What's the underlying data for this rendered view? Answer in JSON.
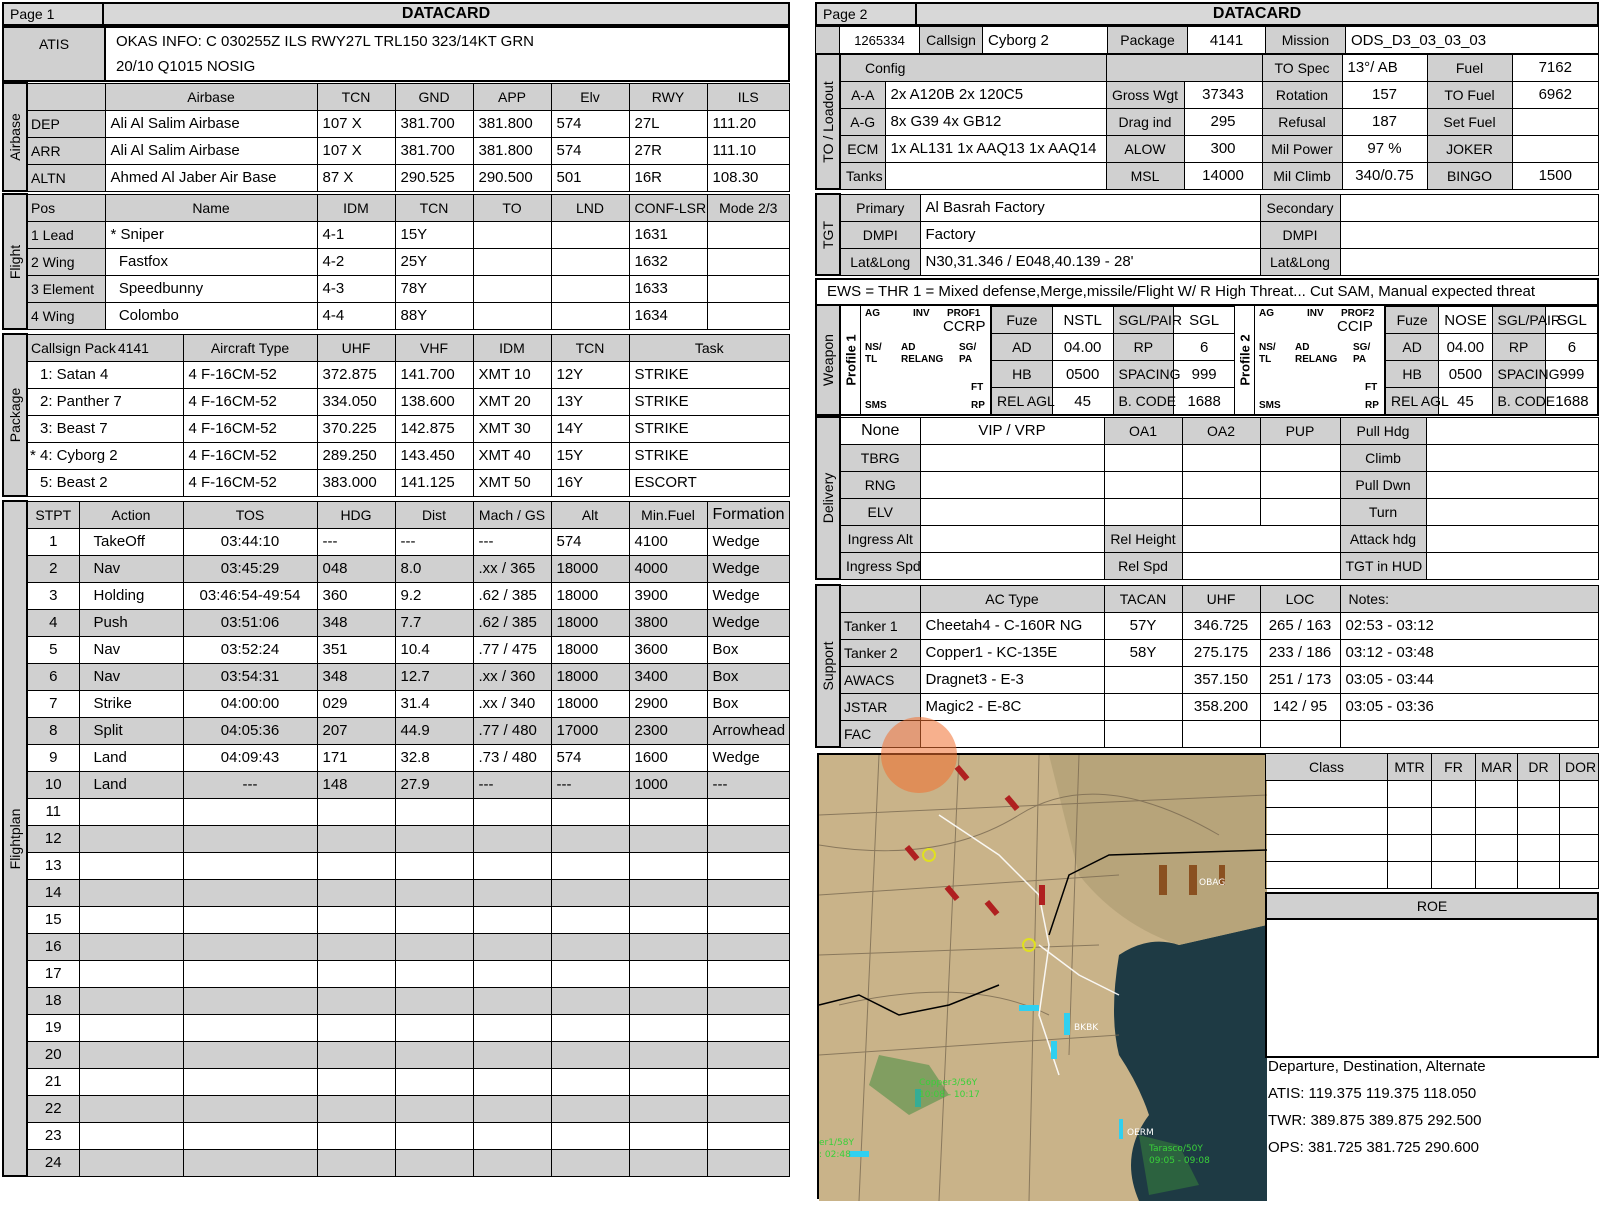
{
  "page1": {
    "page": "Page 1",
    "title": "DATACARD",
    "atis_label": "ATIS",
    "atis_line1": "OKAS INFO: C 030255Z ILS RWY27L TRL150 323/14KT GRN",
    "atis_line2": "20/10 Q1015  NOSIG",
    "airbase": {
      "section": "Airbase",
      "headers": [
        "",
        "Airbase",
        "TCN",
        "GND",
        "APP",
        "Elv",
        "RWY",
        "ILS"
      ],
      "rows": [
        [
          "DEP",
          "Ali Al Salim Airbase",
          "107 X",
          "381.700",
          "381.800",
          "574",
          "27L",
          "111.20"
        ],
        [
          "ARR",
          "Ali Al Salim Airbase",
          "107 X",
          "381.700",
          "381.800",
          "574",
          "27R",
          "111.10"
        ],
        [
          "ALTN",
          "Ahmed Al Jaber Air Base",
          "87 X",
          "290.525",
          "290.500",
          "501",
          "16R",
          "108.30"
        ]
      ]
    },
    "flight": {
      "section": "Flight",
      "headers": [
        "Pos",
        "Name",
        "IDM",
        "TCN",
        "TO",
        "LND",
        "CONF-LSR",
        "Mode 2/3"
      ],
      "rows": [
        [
          "1 Lead",
          "* Sniper",
          "4-1",
          "15Y",
          "",
          "",
          "1631",
          ""
        ],
        [
          "2 Wing",
          "  Fastfox",
          "4-2",
          "25Y",
          "",
          "",
          "1632",
          ""
        ],
        [
          "3 Element",
          "  Speedbunny",
          "4-3",
          "78Y",
          "",
          "",
          "1633",
          ""
        ],
        [
          "4 Wing",
          "  Colombo",
          "4-4",
          "88Y",
          "",
          "",
          "1634",
          ""
        ]
      ]
    },
    "package": {
      "section": "Package",
      "callsign_pack": "Callsign Pack",
      "pack_no": "4141",
      "headers": [
        "Aircraft Type",
        "UHF",
        "VHF",
        "IDM",
        "TCN",
        "Task"
      ],
      "rows": [
        [
          "1: Satan 4",
          "4 F-16CM-52",
          "372.875",
          "141.700",
          "XMT 10",
          "12Y",
          "STRIKE"
        ],
        [
          "2: Panther 7",
          "4 F-16CM-52",
          "334.050",
          "138.600",
          "XMT 20",
          "13Y",
          "STRIKE"
        ],
        [
          "3: Beast 7",
          "4 F-16CM-52",
          "370.225",
          "142.875",
          "XMT 30",
          "14Y",
          "STRIKE"
        ],
        [
          "* 4: Cyborg 2",
          "4 F-16CM-52",
          "289.250",
          "143.450",
          "XMT 40",
          "15Y",
          "STRIKE"
        ],
        [
          "5: Beast 2",
          "4 F-16CM-52",
          "383.000",
          "141.125",
          "XMT 50",
          "16Y",
          "ESCORT"
        ]
      ]
    },
    "flightplan": {
      "section": "Flightplan",
      "headers": [
        "STPT",
        "Action",
        "TOS",
        "HDG",
        "Dist",
        "Mach / GS",
        "Alt",
        "Min.Fuel",
        "Formation"
      ],
      "rows": [
        [
          "1",
          "TakeOff",
          "03:44:10",
          "---",
          "---",
          "---",
          "574",
          "4100",
          "Wedge"
        ],
        [
          "2",
          "Nav",
          "03:45:29",
          "048",
          "8.0",
          ".xx / 365",
          "18000",
          "4000",
          "Wedge"
        ],
        [
          "3",
          "Holding",
          "03:46:54-49:54",
          "360",
          "9.2",
          ".62 / 385",
          "18000",
          "3900",
          "Wedge"
        ],
        [
          "4",
          "Push",
          "03:51:06",
          "348",
          "7.7",
          ".62 / 385",
          "18000",
          "3800",
          "Wedge"
        ],
        [
          "5",
          "Nav",
          "03:52:24",
          "351",
          "10.4",
          ".77 / 475",
          "18000",
          "3600",
          "Box"
        ],
        [
          "6",
          "Nav",
          "03:54:31",
          "348",
          "12.7",
          ".xx / 360",
          "18000",
          "3400",
          "Box"
        ],
        [
          "7",
          "Strike",
          "04:00:00",
          "029",
          "31.4",
          ".xx / 340",
          "18000",
          "2900",
          "Box"
        ],
        [
          "8",
          "Split",
          "04:05:36",
          "207",
          "44.9",
          ".77 / 480",
          "17000",
          "2300",
          "Arrowhead"
        ],
        [
          "9",
          "Land",
          "04:09:43",
          "171",
          "32.8",
          ".73 / 480",
          "574",
          "1600",
          "Wedge"
        ],
        [
          "10",
          "Land",
          "---",
          "148",
          "27.9",
          "---",
          "---",
          "1000",
          "---"
        ],
        [
          "11",
          "",
          "",
          "",
          "",
          "",
          "",
          "",
          ""
        ],
        [
          "12",
          "",
          "",
          "",
          "",
          "",
          "",
          "",
          ""
        ],
        [
          "13",
          "",
          "",
          "",
          "",
          "",
          "",
          "",
          ""
        ],
        [
          "14",
          "",
          "",
          "",
          "",
          "",
          "",
          "",
          ""
        ],
        [
          "15",
          "",
          "",
          "",
          "",
          "",
          "",
          "",
          ""
        ],
        [
          "16",
          "",
          "",
          "",
          "",
          "",
          "",
          "",
          ""
        ],
        [
          "17",
          "",
          "",
          "",
          "",
          "",
          "",
          "",
          ""
        ],
        [
          "18",
          "",
          "",
          "",
          "",
          "",
          "",
          "",
          ""
        ],
        [
          "19",
          "",
          "",
          "",
          "",
          "",
          "",
          "",
          ""
        ],
        [
          "20",
          "",
          "",
          "",
          "",
          "",
          "",
          "",
          ""
        ],
        [
          "21",
          "",
          "",
          "",
          "",
          "",
          "",
          "",
          ""
        ],
        [
          "22",
          "",
          "",
          "",
          "",
          "",
          "",
          "",
          ""
        ],
        [
          "23",
          "",
          "",
          "",
          "",
          "",
          "",
          "",
          ""
        ],
        [
          "24",
          "",
          "",
          "",
          "",
          "",
          "",
          "",
          ""
        ]
      ]
    }
  },
  "page2": {
    "page": "Page 2",
    "title": "DATACARD",
    "top": {
      "id": "1265334",
      "callsign_label": "Callsign",
      "callsign": "Cyborg 2",
      "package_label": "Package",
      "package": "4141",
      "mission_label": "Mission",
      "mission": "ODS_D3_03_03_03"
    },
    "loadout": {
      "section": "TO / Loadout",
      "config_label": "Config",
      "rows": [
        [
          "A-A",
          "2x A120B 2x 120C5",
          "Gross Wgt",
          "37343",
          "Rotation",
          "157",
          "TO Fuel",
          "6962"
        ],
        [
          "A-G",
          "8x G39 4x GB12",
          "Drag ind",
          "295",
          "Refusal",
          "187",
          "Set Fuel",
          ""
        ],
        [
          "ECM",
          "1x AL131 1x AAQ13 1x AAQ14",
          "ALOW",
          "300",
          "Mil Power",
          "97 %",
          "JOKER",
          ""
        ],
        [
          "Tanks",
          "",
          "MSL",
          "14000",
          "Mil Climb",
          "340/0.75",
          "BINGO",
          "1500"
        ]
      ],
      "to_spec_label": "TO Spec",
      "to_spec": "13°/ AB",
      "fuel_label": "Fuel",
      "fuel": "7162"
    },
    "tgt": {
      "section": "TGT",
      "rows": [
        [
          "Primary",
          "Al Basrah Factory",
          "Secondary",
          ""
        ],
        [
          "DMPI",
          "Factory",
          "DMPI",
          ""
        ],
        [
          "Lat&Long",
          "N30,31.346 / E048,40.139 - 28'",
          "Lat&Long",
          ""
        ]
      ]
    },
    "ews": "EWS = THR 1 = Mixed defense,Merge,missile/Flight W/ R High Threat... Cut SAM, Manual expected threat",
    "weapon": {
      "section": "Weapon",
      "p1": {
        "label": "Profile 1",
        "mode": "CCRP",
        "prof": "PROF1",
        "fuze": "NSTL",
        "ad": "04.00",
        "hb": "0500",
        "relagl": "45",
        "sgl": "SGL",
        "rp": "6",
        "spacing": "999",
        "bcode": "1688"
      },
      "p2": {
        "label": "Profile 2",
        "mode": "CCIP",
        "prof": "PROF2",
        "fuze": "NOSE",
        "ad": "04.00",
        "hb": "0500",
        "relagl": "45",
        "sgl": "SGL",
        "rp": "6",
        "spacing": "999",
        "bcode": "1688"
      },
      "lbl": {
        "fuze": "Fuze",
        "ad": "AD",
        "hb": "HB",
        "relagl": "REL AGL",
        "sglpair": "SGL/PAIR",
        "rp": "RP",
        "spacing": "SPACING",
        "bcode": "B. CODE"
      },
      "mfd": {
        "ag": "AG",
        "inv": "INV",
        "ns": "NS/",
        "tl": "TL",
        "ad": "AD",
        "relang": "RELANG",
        "sg": "SG/",
        "pa": "PA",
        "ft": "FT",
        "sms": "SMS",
        "rp": "RP"
      }
    },
    "delivery": {
      "section": "Delivery",
      "rows": [
        "None",
        "TBRG",
        "RNG",
        "ELV",
        "Ingress Alt",
        "Ingress Spd"
      ],
      "vip": "VIP / VRP",
      "oa1": "OA1",
      "oa2": "OA2",
      "pup": "PUP",
      "right": [
        "Pull Hdg",
        "Climb",
        "Pull Dwn",
        "Turn",
        "Attack hdg",
        "TGT in HUD"
      ],
      "relh": "Rel Height",
      "rels": "Rel Spd"
    },
    "support": {
      "section": "Support",
      "headers": [
        "AC Type",
        "TACAN",
        "UHF",
        "LOC",
        "Notes:"
      ],
      "rows": [
        [
          "Tanker 1",
          "Cheetah4 - C-160R NG",
          "57Y",
          "346.725",
          "265 / 163",
          "02:53 - 03:12"
        ],
        [
          "Tanker 2",
          "Copper1 - KC-135E",
          "58Y",
          "275.175",
          "233 / 186",
          "03:12 - 03:48"
        ],
        [
          "AWACS",
          "Dragnet3 - E-3",
          "",
          "357.150",
          "251 / 173",
          "03:05 - 03:44"
        ],
        [
          "JSTAR",
          "Magic2 - E-8C",
          "",
          "358.200",
          "142 / 95",
          "03:05 - 03:36"
        ],
        [
          "FAC",
          "",
          "",
          "",
          "",
          ""
        ]
      ]
    },
    "threat_headers": [
      "Class",
      "MTR",
      "FR",
      "MAR",
      "DR",
      "DOR"
    ],
    "roe": "ROE",
    "freqs": {
      "title": "Departure, Destination, Alternate",
      "atis": "ATIS: 119.375  119.375  118.050",
      "twr": "TWR: 389.875  389.875  292.500",
      "ops": "OPS: 381.725  381.725  290.600"
    },
    "map_labels": [
      "Copper3/56Y",
      "10:08 - 10:17",
      "er1/58Y",
      ": 02:48",
      "Tarasco/50Y",
      "09:05 - 09:08",
      "BKBK",
      "OERM",
      "OBAG"
    ]
  }
}
